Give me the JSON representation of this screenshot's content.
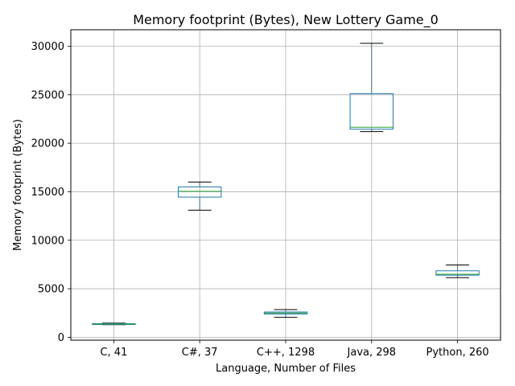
{
  "chart_data": {
    "type": "box",
    "title": "Memory footprint (Bytes), New Lottery Game_0",
    "xlabel": "Language, Number of Files",
    "ylabel": "Memory footprint (Bytes)",
    "categories": [
      "C, 41",
      "C#, 37",
      "C++, 1298",
      "Java, 298",
      "Python, 260"
    ],
    "ylim": [
      -300,
      31700
    ],
    "yticks": [
      0,
      5000,
      10000,
      15000,
      20000,
      25000,
      30000
    ],
    "grid": true,
    "boxes": [
      {
        "category": "C, 41",
        "whisker_low": 1300,
        "q1": 1320,
        "median": 1360,
        "q3": 1400,
        "whisker_high": 1450
      },
      {
        "category": "C#, 37",
        "whisker_low": 13100,
        "q1": 14450,
        "median": 15050,
        "q3": 15500,
        "whisker_high": 16000
      },
      {
        "category": "C++, 1298",
        "whisker_low": 2050,
        "q1": 2400,
        "median": 2500,
        "q3": 2600,
        "whisker_high": 2850
      },
      {
        "category": "Java, 298",
        "whisker_low": 21200,
        "q1": 21450,
        "median": 21650,
        "q3": 25100,
        "whisker_high": 30300
      },
      {
        "category": "Python, 260",
        "whisker_low": 6150,
        "q1": 6400,
        "median": 6500,
        "q3": 6850,
        "whisker_high": 7450
      }
    ],
    "colors": {
      "box": "#1f77b4",
      "median": "#2ca02c",
      "whisker_cap": "#000000",
      "grid": "#b0b0b0"
    }
  }
}
